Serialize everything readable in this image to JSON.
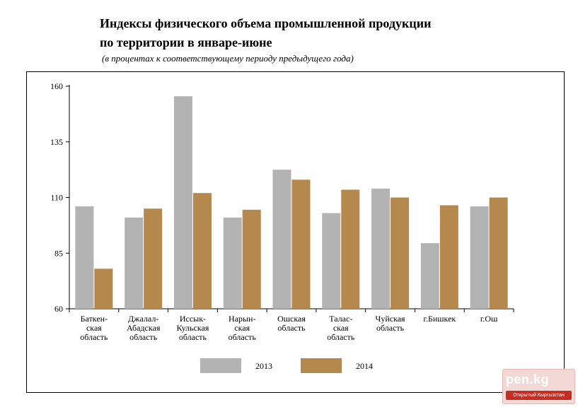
{
  "header": {
    "title_line1": "Индексы физического объема промышленной продукции",
    "title_line2": "по территории в январе-июне",
    "subtitle": "(в процентах к соответствующему периоду предыдущего года)"
  },
  "chart_data": {
    "type": "bar",
    "title": "Индексы физического объема промышленной продукции по территории в январе-июне",
    "subtitle": "(в процентах к соответствующему периоду предыдущего года)",
    "xlabel": "",
    "ylabel": "",
    "ylim": [
      60,
      160
    ],
    "yticks": [
      60,
      85,
      110,
      135,
      160
    ],
    "grid": false,
    "legend_position": "bottom",
    "categories": [
      [
        "Баткен-",
        "ская",
        "область"
      ],
      [
        "Джалал-",
        "Абадская",
        "область"
      ],
      [
        "Иссык-",
        "Кульская",
        "область"
      ],
      [
        "Нарын-",
        "ская",
        "область"
      ],
      [
        "Ошская",
        "область"
      ],
      [
        "Талас-",
        "ская",
        "область"
      ],
      [
        "Чуйская",
        "область"
      ],
      [
        "г.Бишкек"
      ],
      [
        "г.Ош"
      ]
    ],
    "series": [
      {
        "name": "2013",
        "color": "#b3b3b3",
        "values": [
          106,
          101,
          155.5,
          101,
          122.5,
          103,
          114,
          89.5,
          106
        ]
      },
      {
        "name": "2014",
        "color": "#b5894d",
        "values": [
          78,
          105,
          112,
          104.5,
          118,
          113.5,
          110,
          106.5,
          110
        ]
      }
    ]
  },
  "watermark": {
    "logo": "pen.kg",
    "tagline": "Открытый Кыргызстан"
  }
}
